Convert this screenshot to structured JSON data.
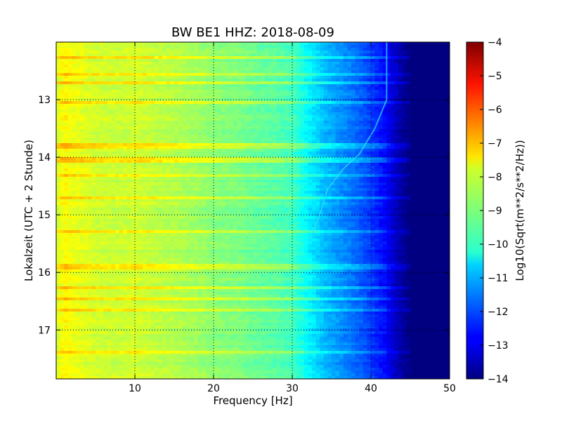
{
  "chart_data": {
    "type": "heatmap",
    "title": "BW BE1 HHZ: 2018-08-09",
    "xlabel": "Frequency [Hz]",
    "ylabel": "Lokalzeit (UTC + 2 Stunde)",
    "colorbar_label": "Log10(Sqrt(m**2/s**2/Hz))",
    "xlim": [
      0,
      50
    ],
    "ylim": [
      12.0,
      17.85
    ],
    "y_inverted": true,
    "x_ticks": [
      10,
      20,
      30,
      40,
      50
    ],
    "x_tick_labels": [
      "10",
      "20",
      "30",
      "40",
      "50"
    ],
    "y_ticks": [
      13,
      14,
      15,
      16,
      17
    ],
    "y_tick_labels": [
      "13",
      "14",
      "15",
      "16",
      "17"
    ],
    "color_range": [
      -14,
      -4
    ],
    "colorbar_ticks": [
      -4,
      -5,
      -6,
      -7,
      -8,
      -9,
      -10,
      -11,
      -12,
      -13,
      -14
    ],
    "colorbar_tick_labels": [
      "−4",
      "−5",
      "−6",
      "−7",
      "−8",
      "−9",
      "−10",
      "−11",
      "−12",
      "−13",
      "−14"
    ],
    "colormap": "jet",
    "grid": true,
    "grid_style": "dotted",
    "spectrum_profile": {
      "frequency_hz": [
        0,
        1,
        2,
        3,
        5,
        8,
        10,
        13,
        15,
        18,
        20,
        23,
        25,
        28,
        30,
        32,
        34,
        36,
        38,
        40,
        42,
        43,
        44,
        45,
        46,
        48,
        50
      ],
      "log_amplitude": [
        -8.2,
        -7.7,
        -7.9,
        -8.0,
        -8.2,
        -8.3,
        -8.2,
        -8.4,
        -8.5,
        -8.7,
        -8.9,
        -9.0,
        -9.2,
        -9.4,
        -9.6,
        -10.3,
        -10.9,
        -11.3,
        -11.7,
        -12.2,
        -12.8,
        -13.3,
        -13.7,
        -14.0,
        -14.0,
        -14.0,
        -14.0
      ]
    },
    "bright_bands_hours": [
      12.25,
      12.55,
      12.72,
      13.05,
      13.8,
      14.05,
      14.3,
      14.7,
      15.3,
      15.9,
      16.25,
      16.45,
      16.65,
      17.4
    ],
    "drifting_line": {
      "points": [
        [
          32.0,
          15.5
        ],
        [
          33.5,
          15.0
        ],
        [
          34.5,
          14.55
        ],
        [
          36.5,
          14.2
        ],
        [
          38.5,
          13.95
        ],
        [
          40.5,
          13.5
        ],
        [
          42.0,
          13.0
        ],
        [
          42.0,
          12.0
        ]
      ]
    }
  }
}
